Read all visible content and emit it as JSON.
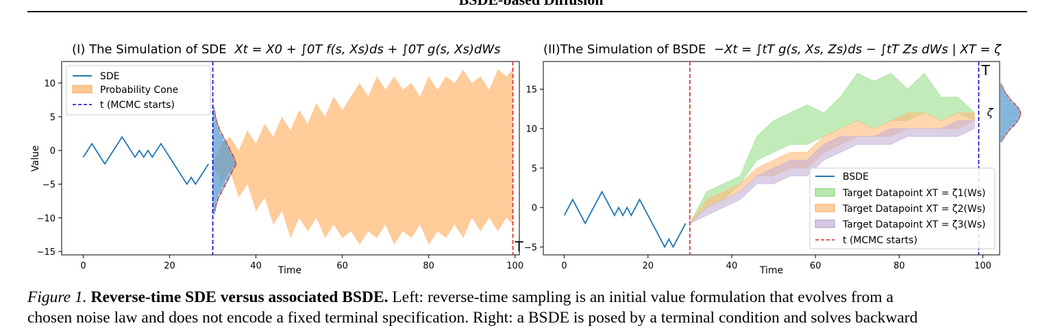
{
  "page_title": "BSDE-based Diffusion",
  "caption": {
    "label": "Figure 1.",
    "heading": "Reverse-time SDE versus associated BSDE.",
    "text_line1": "Left: reverse-time sampling is an initial value formulation that evolves from a",
    "text_line2": "chosen noise law and does not encode a fixed terminal specification. Right: a BSDE is posed by a terminal condition and solves backward"
  },
  "colors": {
    "sde_line": "#1f77b4",
    "cone": "#ffbb78",
    "green": "#98df8a",
    "orange": "#ffbb78",
    "purple": "#c5b0d5",
    "red_dash": "#d62728",
    "blue_dash": "#0000cc",
    "hist": "#5a9ccf",
    "density": "#d62728"
  },
  "chart_data": [
    {
      "type": "line",
      "title_prefix": "(I)  The Simulation of SDE",
      "title_math": "Xt = X0 + ∫0T f(s, Xs)ds + ∫0T g(s, Xs)dWs",
      "xlabel": "Time",
      "ylabel": "Value",
      "xlim": [
        -5,
        101
      ],
      "ylim": [
        -15.5,
        13.2
      ],
      "xticks": [
        0,
        20,
        40,
        60,
        80,
        100
      ],
      "yticks": [
        -15,
        -10,
        -5,
        0,
        5,
        10
      ],
      "grid": false,
      "legend_position": "top-left",
      "legend": [
        "SDE",
        "Probability Cone",
        "t (MCMC starts)"
      ],
      "t_mcmc": 30,
      "T": 99.5,
      "T_label": "T",
      "series": [
        {
          "name": "SDE",
          "x": [
            0,
            2,
            5,
            9,
            12,
            13,
            14,
            15,
            16,
            18,
            20,
            24,
            25,
            26,
            29
          ],
          "y": [
            -1,
            1,
            -2,
            2,
            -1,
            0,
            -1,
            0,
            -1,
            1,
            -1,
            -5,
            -4,
            -5,
            -2
          ]
        }
      ],
      "cone": {
        "x": [
          30,
          32,
          34,
          36,
          38,
          40,
          42,
          44,
          46,
          48,
          50,
          52,
          54,
          56,
          58,
          60,
          62,
          64,
          66,
          68,
          70,
          72,
          74,
          76,
          78,
          80,
          82,
          84,
          86,
          88,
          90,
          92,
          94,
          96,
          98,
          99.5
        ],
        "upper": [
          -2,
          1,
          2,
          0,
          3,
          1,
          4,
          2,
          5,
          3,
          6,
          4,
          7,
          5,
          8,
          6,
          8,
          10,
          8,
          11,
          9,
          11,
          9,
          10,
          8,
          11,
          9,
          11,
          10,
          12,
          10,
          11,
          9,
          12,
          11,
          12
        ],
        "lower": [
          -2,
          -5,
          -3,
          -7,
          -5,
          -9,
          -7,
          -11,
          -9,
          -13,
          -10,
          -12,
          -10,
          -13,
          -11,
          -13,
          -12,
          -14,
          -12,
          -13,
          -11,
          -14,
          -12,
          -13,
          -11,
          -14,
          -12,
          -13,
          -11,
          -13,
          -10,
          -12,
          -10,
          -12,
          -10,
          -11
        ]
      },
      "histogram": {
        "bins": [
          -9,
          -8,
          -7,
          -6,
          -5,
          -4,
          -3,
          -2,
          -1,
          0,
          1,
          2,
          3,
          4,
          5,
          6
        ],
        "counts": [
          0.1,
          0.15,
          0.25,
          0.4,
          0.55,
          0.7,
          0.85,
          1.0,
          0.9,
          0.75,
          0.6,
          0.45,
          0.3,
          0.2,
          0.12,
          0.08
        ]
      }
    },
    {
      "type": "area",
      "title_prefix": "(II)The Simulation of BSDE",
      "title_math": "−Xt = ∫tT g(s, Xs, Zs)ds − ∫tT Zs dWs | XT = ζ",
      "xlabel": "Time",
      "xlim": [
        -5,
        104
      ],
      "ylim": [
        -6,
        18.5
      ],
      "xticks": [
        0,
        20,
        40,
        60,
        80,
        100
      ],
      "yticks": [
        -5,
        0,
        5,
        10,
        15
      ],
      "grid": false,
      "legend_position": "bottom-right",
      "legend": [
        "BSDE",
        "Target Datapoint XT = ζ1(Ws)",
        "Target Datapoint XT = ζ2(Ws)",
        "Target Datapoint XT = ζ3(Ws)",
        "t (MCMC starts)"
      ],
      "t_mcmc": 30,
      "T": 99,
      "T_label": "T",
      "zeta_label": "ζ",
      "series": [
        {
          "name": "BSDE",
          "x": [
            0,
            2,
            5,
            9,
            12,
            13,
            14,
            15,
            16,
            18,
            20,
            24,
            25,
            26,
            29
          ],
          "y": [
            -1,
            1,
            -2,
            2,
            -1,
            0,
            -1,
            0,
            -1,
            1,
            -1,
            -5,
            -4,
            -5,
            -2
          ]
        }
      ],
      "bands": [
        {
          "name": "Target Datapoint XT = ζ1(Ws)",
          "x": [
            30,
            34,
            38,
            42,
            46,
            50,
            54,
            58,
            62,
            66,
            70,
            74,
            78,
            82,
            86,
            90,
            94,
            98
          ],
          "upper": [
            -2,
            2,
            3,
            4,
            9,
            11,
            12,
            13,
            12,
            14,
            17,
            16,
            17,
            15,
            17,
            14,
            14,
            12
          ],
          "lower": [
            -2,
            0,
            1,
            3,
            6,
            7,
            8,
            8,
            9,
            10,
            11,
            10,
            11,
            11,
            12,
            11,
            12,
            11
          ]
        },
        {
          "name": "Target Datapoint XT = ζ2(Ws)",
          "x": [
            30,
            34,
            38,
            42,
            46,
            50,
            54,
            58,
            62,
            66,
            70,
            74,
            78,
            82,
            86,
            90,
            94,
            98
          ],
          "upper": [
            -2,
            1,
            2,
            3,
            5,
            6,
            7,
            7,
            9,
            10,
            11,
            10,
            11,
            12,
            12,
            11,
            12,
            12
          ],
          "lower": [
            -2,
            0,
            1,
            2,
            4,
            4,
            5,
            5,
            7,
            8,
            9,
            9,
            9,
            10,
            10,
            10,
            10,
            11
          ]
        },
        {
          "name": "Target Datapoint XT = ζ3(Ws)",
          "x": [
            30,
            34,
            38,
            42,
            46,
            50,
            54,
            58,
            62,
            66,
            70,
            74,
            78,
            82,
            86,
            90,
            94,
            98
          ],
          "upper": [
            -2,
            0,
            1,
            2,
            4,
            5,
            6,
            6,
            8,
            9,
            9,
            9,
            10,
            10,
            10,
            10,
            11,
            11
          ],
          "lower": [
            -2,
            -1,
            0,
            1,
            3,
            3,
            4,
            4,
            6,
            7,
            8,
            8,
            8,
            9,
            9,
            9,
            9,
            10
          ]
        }
      ],
      "histogram": {
        "bins": [
          8.5,
          9,
          9.5,
          10,
          10.5,
          11,
          11.5,
          12,
          12.5,
          13,
          13.5,
          14,
          14.5,
          15,
          15.5
        ],
        "counts": [
          0.1,
          0.2,
          0.35,
          0.5,
          0.7,
          0.85,
          0.95,
          1.0,
          0.9,
          0.75,
          0.55,
          0.4,
          0.25,
          0.15,
          0.08
        ]
      }
    }
  ]
}
